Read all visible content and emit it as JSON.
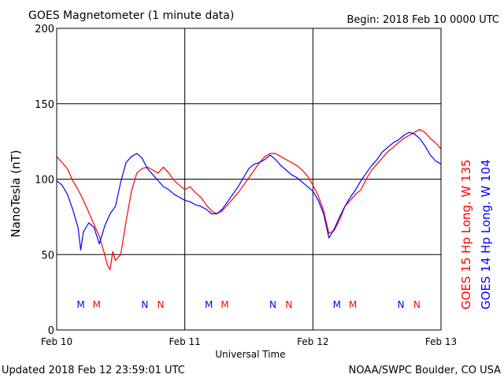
{
  "title": "GOES Magnetometer (1 minute data)",
  "begin_label": "Begin:  2018 Feb 10 0000 UTC",
  "footer_left": "Updated 2018 Feb 12 23:59:01 UTC",
  "footer_right": "NOAA/SWPC Boulder, CO USA",
  "colors": {
    "goes15": "#ff0000",
    "goes14": "#0000ff",
    "grid": "#000000"
  },
  "chart_data": {
    "type": "line",
    "title": "GOES Magnetometer (1 minute data)",
    "xlabel": "Universal Time",
    "ylabel": "NanoTesla (nT)",
    "ylim": [
      0,
      200
    ],
    "xlim": [
      0,
      72
    ],
    "x_unit": "hours since 2018 Feb 10 0000 UTC",
    "x_ticks": [
      {
        "x": 0,
        "label": "Feb 10"
      },
      {
        "x": 24,
        "label": "Feb 11"
      },
      {
        "x": 48,
        "label": "Feb 12"
      },
      {
        "x": 72,
        "label": "Feb 13"
      }
    ],
    "y_ticks": [
      0,
      50,
      100,
      150,
      200
    ],
    "grid": true,
    "series": [
      {
        "name": "GOES 15 Hp  Long. W 135",
        "color": "#ff0000",
        "x": [
          0,
          1,
          2,
          3,
          4,
          5,
          6,
          7,
          8,
          9,
          9.5,
          10,
          10.5,
          11,
          12,
          13,
          14,
          15,
          16,
          17,
          18,
          19,
          20,
          21,
          22,
          23,
          24,
          25,
          26,
          27,
          28,
          29,
          30,
          31,
          32,
          33,
          34,
          35,
          36,
          37,
          38,
          39,
          40,
          41,
          42,
          43,
          44,
          45,
          46,
          47,
          48,
          49,
          50,
          51,
          52,
          53,
          54,
          55,
          56,
          57,
          58,
          59,
          60,
          61,
          62,
          63,
          64,
          65,
          66,
          67,
          68,
          69,
          70,
          71,
          72
        ],
        "values": [
          115,
          111,
          107,
          99,
          93,
          86,
          78,
          70,
          62,
          50,
          43,
          40,
          52,
          46,
          50,
          72,
          92,
          104,
          107,
          108,
          106,
          104,
          108,
          104,
          99,
          96,
          93,
          95,
          91,
          88,
          83,
          79,
          77,
          79,
          83,
          87,
          91,
          96,
          101,
          106,
          111,
          115,
          117,
          117,
          115,
          113,
          111,
          109,
          106,
          102,
          96,
          89,
          79,
          64,
          66,
          73,
          82,
          86,
          90,
          93,
          100,
          106,
          110,
          114,
          118,
          121,
          124,
          127,
          129,
          131,
          133,
          131,
          127,
          124,
          120
        ]
      },
      {
        "name": "GOES 14 Hp  Long. W 104",
        "color": "#0000ff",
        "x": [
          0,
          1,
          2,
          3,
          4,
          4.5,
          5,
          6,
          7,
          8,
          9,
          10,
          11,
          12,
          13,
          14,
          15,
          16,
          17,
          18,
          19,
          20,
          21,
          22,
          23,
          24,
          25,
          26,
          27,
          28,
          29,
          30,
          31,
          32,
          33,
          34,
          35,
          36,
          37,
          38,
          39,
          40,
          41,
          42,
          43,
          44,
          45,
          46,
          47,
          48,
          49,
          50,
          51,
          52,
          53,
          54,
          55,
          56,
          57,
          58,
          59,
          60,
          61,
          62,
          63,
          64,
          65,
          66,
          67,
          68,
          69,
          70,
          71,
          72
        ],
        "values": [
          99,
          96,
          90,
          80,
          68,
          53,
          65,
          71,
          68,
          57,
          69,
          77,
          82,
          98,
          111,
          115,
          117,
          114,
          107,
          103,
          99,
          95,
          93,
          90,
          88,
          86,
          85,
          83,
          82,
          80,
          77,
          77,
          80,
          85,
          90,
          95,
          101,
          107,
          110,
          111,
          113,
          116,
          113,
          109,
          106,
          103,
          101,
          98,
          95,
          92,
          86,
          77,
          61,
          67,
          75,
          82,
          88,
          93,
          99,
          104,
          109,
          113,
          118,
          121,
          124,
          126,
          129,
          131,
          130,
          127,
          122,
          116,
          112,
          110
        ]
      }
    ],
    "markers": [
      {
        "x": 4.5,
        "label": "M",
        "color": "#0000ff"
      },
      {
        "x": 7.5,
        "label": "M",
        "color": "#ff0000"
      },
      {
        "x": 16.5,
        "label": "N",
        "color": "#0000ff"
      },
      {
        "x": 19.5,
        "label": "N",
        "color": "#ff0000"
      },
      {
        "x": 28.5,
        "label": "M",
        "color": "#0000ff"
      },
      {
        "x": 31.5,
        "label": "M",
        "color": "#ff0000"
      },
      {
        "x": 40.5,
        "label": "N",
        "color": "#0000ff"
      },
      {
        "x": 43.5,
        "label": "N",
        "color": "#ff0000"
      },
      {
        "x": 52.5,
        "label": "M",
        "color": "#0000ff"
      },
      {
        "x": 55.5,
        "label": "M",
        "color": "#ff0000"
      },
      {
        "x": 64.5,
        "label": "N",
        "color": "#0000ff"
      },
      {
        "x": 67.5,
        "label": "N",
        "color": "#ff0000"
      }
    ]
  }
}
